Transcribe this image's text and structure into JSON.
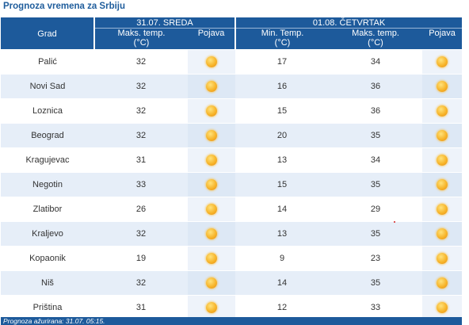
{
  "title": "Prognoza vremena za Srbiju",
  "header": {
    "grad": "Grad",
    "day1": "31.07. SREDA",
    "day2": "01.08. ČETVRTAK",
    "max_temp_l1": "Maks. temp.",
    "min_temp_l1": "Min. Temp.",
    "temp_unit": "(°C)",
    "pojava": "Pojava"
  },
  "rows": [
    {
      "city": "Palić",
      "d1_max": "32",
      "d2_min": "17",
      "d2_max": "34",
      "icon": "sun-icon"
    },
    {
      "city": "Novi Sad",
      "d1_max": "32",
      "d2_min": "16",
      "d2_max": "36",
      "icon": "sun-icon"
    },
    {
      "city": "Loznica",
      "d1_max": "32",
      "d2_min": "15",
      "d2_max": "36",
      "icon": "sun-icon"
    },
    {
      "city": "Beograd",
      "d1_max": "32",
      "d2_min": "20",
      "d2_max": "35",
      "icon": "sun-icon"
    },
    {
      "city": "Kragujevac",
      "d1_max": "31",
      "d2_min": "13",
      "d2_max": "34",
      "icon": "sun-icon"
    },
    {
      "city": "Negotin",
      "d1_max": "33",
      "d2_min": "15",
      "d2_max": "35",
      "icon": "sun-icon"
    },
    {
      "city": "Zlatibor",
      "d1_max": "26",
      "d2_min": "14",
      "d2_max": "29",
      "icon": "sun-icon"
    },
    {
      "city": "Kraljevo",
      "d1_max": "32",
      "d2_min": "13",
      "d2_max": "35",
      "icon": "sun-icon"
    },
    {
      "city": "Kopaonik",
      "d1_max": "19",
      "d2_min": "9",
      "d2_max": "23",
      "icon": "sun-icon"
    },
    {
      "city": "Niš",
      "d1_max": "32",
      "d2_min": "14",
      "d2_max": "35",
      "icon": "sun-icon"
    },
    {
      "city": "Priština",
      "d1_max": "31",
      "d2_min": "12",
      "d2_max": "33",
      "icon": "sun-icon"
    }
  ],
  "footer": "Prognoza ažurirana:  31.07. 05:15.",
  "colors": {
    "header_bg": "#1d5a9b",
    "title": "#1f5d9c",
    "row_alt": "#e6eef8",
    "sun": "#f7b52b"
  }
}
